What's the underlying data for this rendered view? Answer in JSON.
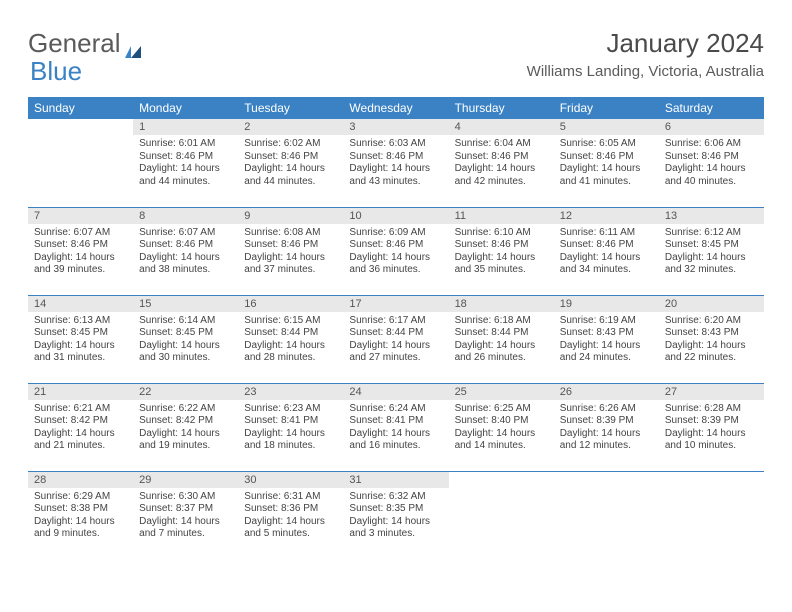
{
  "logo": {
    "general": "General",
    "blue": "Blue"
  },
  "title": "January 2024",
  "location": "Williams Landing, Victoria, Australia",
  "colors": {
    "header_bg": "#3b82c4",
    "header_text": "#ffffff",
    "daynum_bg": "#e8e8e8",
    "text": "#444444",
    "divider": "#3b82c4"
  },
  "weekdays": [
    "Sunday",
    "Monday",
    "Tuesday",
    "Wednesday",
    "Thursday",
    "Friday",
    "Saturday"
  ],
  "weeks": [
    [
      null,
      {
        "n": "1",
        "sunrise": "Sunrise: 6:01 AM",
        "sunset": "Sunset: 8:46 PM",
        "day1": "Daylight: 14 hours",
        "day2": "and 44 minutes."
      },
      {
        "n": "2",
        "sunrise": "Sunrise: 6:02 AM",
        "sunset": "Sunset: 8:46 PM",
        "day1": "Daylight: 14 hours",
        "day2": "and 44 minutes."
      },
      {
        "n": "3",
        "sunrise": "Sunrise: 6:03 AM",
        "sunset": "Sunset: 8:46 PM",
        "day1": "Daylight: 14 hours",
        "day2": "and 43 minutes."
      },
      {
        "n": "4",
        "sunrise": "Sunrise: 6:04 AM",
        "sunset": "Sunset: 8:46 PM",
        "day1": "Daylight: 14 hours",
        "day2": "and 42 minutes."
      },
      {
        "n": "5",
        "sunrise": "Sunrise: 6:05 AM",
        "sunset": "Sunset: 8:46 PM",
        "day1": "Daylight: 14 hours",
        "day2": "and 41 minutes."
      },
      {
        "n": "6",
        "sunrise": "Sunrise: 6:06 AM",
        "sunset": "Sunset: 8:46 PM",
        "day1": "Daylight: 14 hours",
        "day2": "and 40 minutes."
      }
    ],
    [
      {
        "n": "7",
        "sunrise": "Sunrise: 6:07 AM",
        "sunset": "Sunset: 8:46 PM",
        "day1": "Daylight: 14 hours",
        "day2": "and 39 minutes."
      },
      {
        "n": "8",
        "sunrise": "Sunrise: 6:07 AM",
        "sunset": "Sunset: 8:46 PM",
        "day1": "Daylight: 14 hours",
        "day2": "and 38 minutes."
      },
      {
        "n": "9",
        "sunrise": "Sunrise: 6:08 AM",
        "sunset": "Sunset: 8:46 PM",
        "day1": "Daylight: 14 hours",
        "day2": "and 37 minutes."
      },
      {
        "n": "10",
        "sunrise": "Sunrise: 6:09 AM",
        "sunset": "Sunset: 8:46 PM",
        "day1": "Daylight: 14 hours",
        "day2": "and 36 minutes."
      },
      {
        "n": "11",
        "sunrise": "Sunrise: 6:10 AM",
        "sunset": "Sunset: 8:46 PM",
        "day1": "Daylight: 14 hours",
        "day2": "and 35 minutes."
      },
      {
        "n": "12",
        "sunrise": "Sunrise: 6:11 AM",
        "sunset": "Sunset: 8:46 PM",
        "day1": "Daylight: 14 hours",
        "day2": "and 34 minutes."
      },
      {
        "n": "13",
        "sunrise": "Sunrise: 6:12 AM",
        "sunset": "Sunset: 8:45 PM",
        "day1": "Daylight: 14 hours",
        "day2": "and 32 minutes."
      }
    ],
    [
      {
        "n": "14",
        "sunrise": "Sunrise: 6:13 AM",
        "sunset": "Sunset: 8:45 PM",
        "day1": "Daylight: 14 hours",
        "day2": "and 31 minutes."
      },
      {
        "n": "15",
        "sunrise": "Sunrise: 6:14 AM",
        "sunset": "Sunset: 8:45 PM",
        "day1": "Daylight: 14 hours",
        "day2": "and 30 minutes."
      },
      {
        "n": "16",
        "sunrise": "Sunrise: 6:15 AM",
        "sunset": "Sunset: 8:44 PM",
        "day1": "Daylight: 14 hours",
        "day2": "and 28 minutes."
      },
      {
        "n": "17",
        "sunrise": "Sunrise: 6:17 AM",
        "sunset": "Sunset: 8:44 PM",
        "day1": "Daylight: 14 hours",
        "day2": "and 27 minutes."
      },
      {
        "n": "18",
        "sunrise": "Sunrise: 6:18 AM",
        "sunset": "Sunset: 8:44 PM",
        "day1": "Daylight: 14 hours",
        "day2": "and 26 minutes."
      },
      {
        "n": "19",
        "sunrise": "Sunrise: 6:19 AM",
        "sunset": "Sunset: 8:43 PM",
        "day1": "Daylight: 14 hours",
        "day2": "and 24 minutes."
      },
      {
        "n": "20",
        "sunrise": "Sunrise: 6:20 AM",
        "sunset": "Sunset: 8:43 PM",
        "day1": "Daylight: 14 hours",
        "day2": "and 22 minutes."
      }
    ],
    [
      {
        "n": "21",
        "sunrise": "Sunrise: 6:21 AM",
        "sunset": "Sunset: 8:42 PM",
        "day1": "Daylight: 14 hours",
        "day2": "and 21 minutes."
      },
      {
        "n": "22",
        "sunrise": "Sunrise: 6:22 AM",
        "sunset": "Sunset: 8:42 PM",
        "day1": "Daylight: 14 hours",
        "day2": "and 19 minutes."
      },
      {
        "n": "23",
        "sunrise": "Sunrise: 6:23 AM",
        "sunset": "Sunset: 8:41 PM",
        "day1": "Daylight: 14 hours",
        "day2": "and 18 minutes."
      },
      {
        "n": "24",
        "sunrise": "Sunrise: 6:24 AM",
        "sunset": "Sunset: 8:41 PM",
        "day1": "Daylight: 14 hours",
        "day2": "and 16 minutes."
      },
      {
        "n": "25",
        "sunrise": "Sunrise: 6:25 AM",
        "sunset": "Sunset: 8:40 PM",
        "day1": "Daylight: 14 hours",
        "day2": "and 14 minutes."
      },
      {
        "n": "26",
        "sunrise": "Sunrise: 6:26 AM",
        "sunset": "Sunset: 8:39 PM",
        "day1": "Daylight: 14 hours",
        "day2": "and 12 minutes."
      },
      {
        "n": "27",
        "sunrise": "Sunrise: 6:28 AM",
        "sunset": "Sunset: 8:39 PM",
        "day1": "Daylight: 14 hours",
        "day2": "and 10 minutes."
      }
    ],
    [
      {
        "n": "28",
        "sunrise": "Sunrise: 6:29 AM",
        "sunset": "Sunset: 8:38 PM",
        "day1": "Daylight: 14 hours",
        "day2": "and 9 minutes."
      },
      {
        "n": "29",
        "sunrise": "Sunrise: 6:30 AM",
        "sunset": "Sunset: 8:37 PM",
        "day1": "Daylight: 14 hours",
        "day2": "and 7 minutes."
      },
      {
        "n": "30",
        "sunrise": "Sunrise: 6:31 AM",
        "sunset": "Sunset: 8:36 PM",
        "day1": "Daylight: 14 hours",
        "day2": "and 5 minutes."
      },
      {
        "n": "31",
        "sunrise": "Sunrise: 6:32 AM",
        "sunset": "Sunset: 8:35 PM",
        "day1": "Daylight: 14 hours",
        "day2": "and 3 minutes."
      },
      null,
      null,
      null
    ]
  ]
}
